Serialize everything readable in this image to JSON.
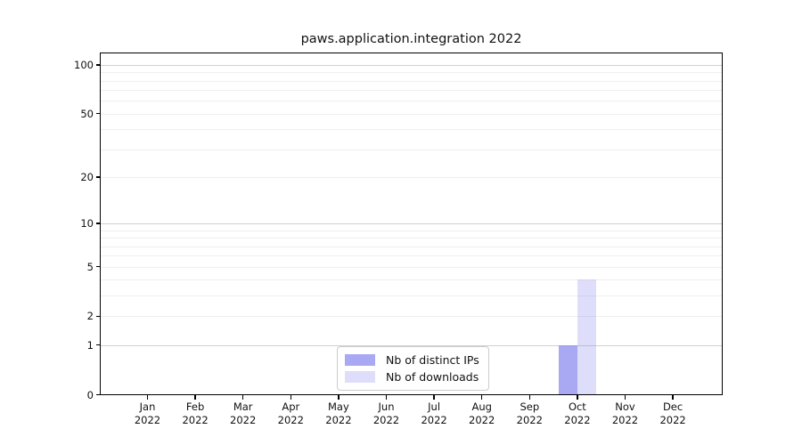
{
  "chart_data": {
    "type": "bar",
    "title": "paws.application.integration 2022",
    "categories": [
      "Jan",
      "Feb",
      "Mar",
      "Apr",
      "May",
      "Jun",
      "Jul",
      "Aug",
      "Sep",
      "Oct",
      "Nov",
      "Dec"
    ],
    "category_year": "2022",
    "series": [
      {
        "name": "Nb of distinct IPs",
        "color": "rgba(136,136,238,0.72)",
        "values": [
          0,
          0,
          0,
          0,
          0,
          0,
          0,
          0,
          0,
          1,
          0,
          0
        ]
      },
      {
        "name": "Nb of downloads",
        "color": "rgba(136,136,238,0.28)",
        "values": [
          0,
          0,
          0,
          0,
          0,
          0,
          0,
          0,
          0,
          4,
          0,
          0
        ]
      }
    ],
    "yscale": "log1p",
    "ylim": [
      0,
      115
    ],
    "yticks": [
      0,
      1,
      2,
      5,
      10,
      20,
      50,
      100
    ],
    "major_gridlines": [
      1,
      10,
      100
    ],
    "minor_gridlines": [
      2,
      3,
      4,
      5,
      6,
      7,
      8,
      9,
      20,
      30,
      40,
      50,
      60,
      70,
      80,
      90
    ],
    "grid": true,
    "legend_position": "lower center"
  },
  "colors": {
    "background": "#ffffff",
    "axis": "#000000",
    "text": "#111111",
    "grid_major": "#d0d0d0",
    "grid_minor": "#efefef",
    "legend_border": "#cccccc"
  }
}
